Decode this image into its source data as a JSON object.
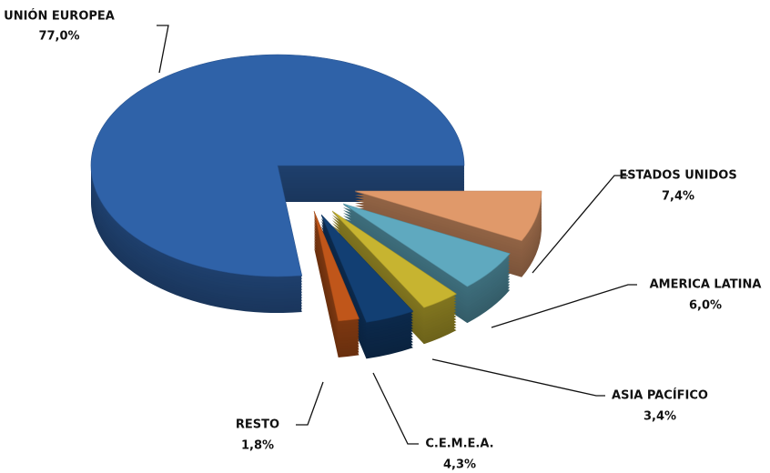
{
  "chart_data": {
    "type": "pie",
    "categories": [
      "UNIÓN EUROPEA",
      "ESTADOS UNIDOS",
      "AMERICA LATINA",
      "ASIA PACÍFICO",
      "C.E.M.E.A.",
      "RESTO"
    ],
    "values": [
      77.0,
      7.4,
      6.0,
      3.4,
      4.3,
      1.8
    ],
    "value_labels": [
      "77,0%",
      "7,4%",
      "6,0%",
      "3,4%",
      "4,3%",
      "1,8%"
    ],
    "colors": [
      "#2f62a8",
      "#e0996a",
      "#5fa9bf",
      "#c7b430",
      "#123f73",
      "#c0561a"
    ]
  }
}
